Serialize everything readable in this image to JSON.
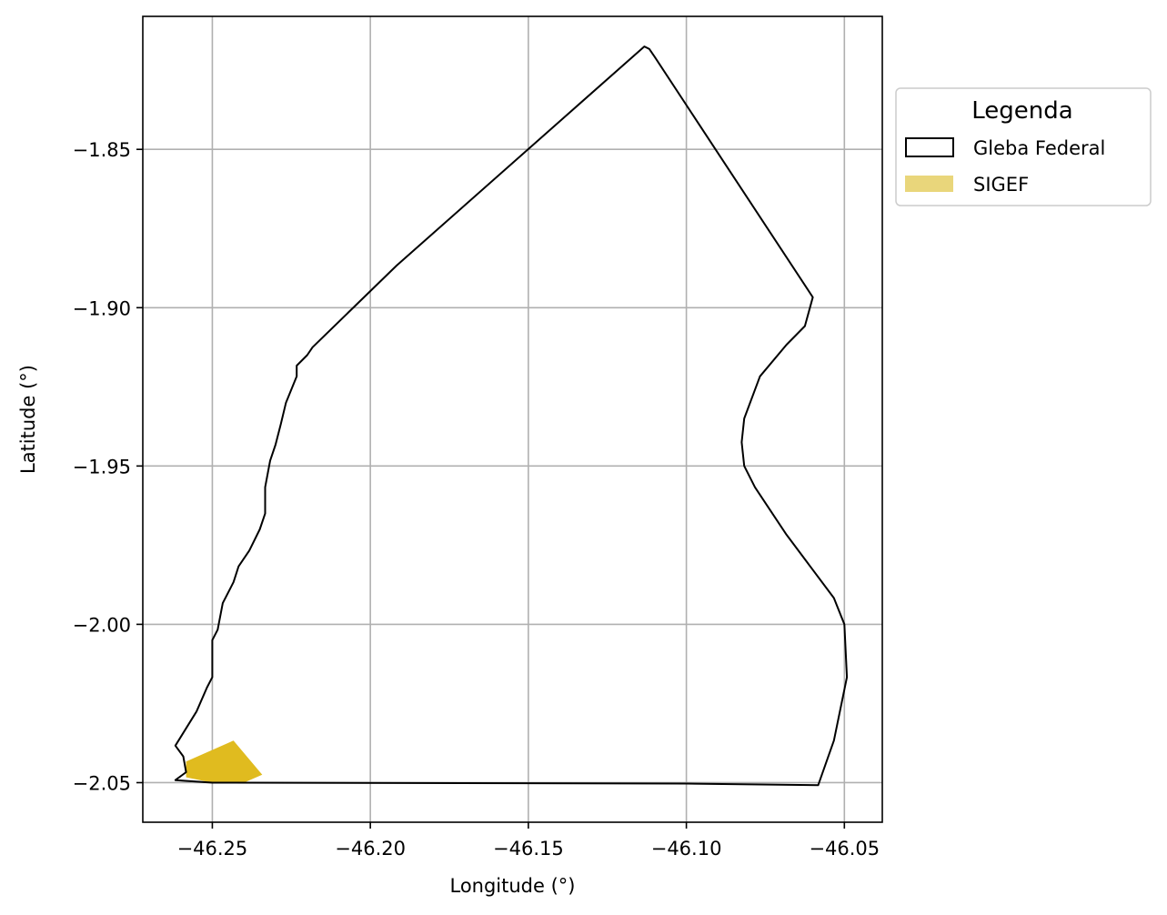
{
  "chart_data": {
    "type": "map",
    "xlabel": "Longitude (°)",
    "ylabel": "Latitude (°)",
    "xlim": [
      -46.272,
      -46.038
    ],
    "ylim": [
      -2.0625,
      -1.808
    ],
    "grid": true,
    "x_ticks": [
      -46.25,
      -46.2,
      -46.15,
      -46.1,
      -46.05
    ],
    "x_tick_labels": [
      "−46.25",
      "−46.20",
      "−46.15",
      "−46.10",
      "−46.05"
    ],
    "y_ticks": [
      -1.85,
      -1.9,
      -1.95,
      -2.0,
      -2.05
    ],
    "y_tick_labels": [
      "−1.85",
      "−1.90",
      "−1.95",
      "−2.00",
      "−2.05"
    ],
    "legend": {
      "title": "Legenda",
      "placement": "outside-right-top",
      "items": [
        {
          "label": "Gleba Federal",
          "style": "outline",
          "color": "#000000"
        },
        {
          "label": "SIGEF",
          "style": "fill",
          "color": "#e9d67b"
        }
      ]
    },
    "layers": [
      {
        "name": "Gleba Federal",
        "color": "#000000",
        "fill": "none",
        "coordinates": [
          [
            -46.1133,
            -1.8175
          ],
          [
            -46.1117,
            -1.8183
          ],
          [
            -46.11,
            -1.8208
          ],
          [
            -46.06,
            -1.8967
          ],
          [
            -46.0625,
            -1.9058
          ],
          [
            -46.0683,
            -1.9117
          ],
          [
            -46.0767,
            -1.9217
          ],
          [
            -46.0817,
            -1.935
          ],
          [
            -46.0825,
            -1.9425
          ],
          [
            -46.0817,
            -1.95
          ],
          [
            -46.0783,
            -1.9567
          ],
          [
            -46.0683,
            -1.9717
          ],
          [
            -46.0533,
            -1.9917
          ],
          [
            -46.05,
            -2.0
          ],
          [
            -46.0492,
            -2.0167
          ],
          [
            -46.0533,
            -2.0367
          ],
          [
            -46.0583,
            -2.0508
          ],
          [
            -46.1,
            -2.0503
          ],
          [
            -46.25,
            -2.05
          ],
          [
            -46.2617,
            -2.0492
          ],
          [
            -46.2583,
            -2.0467
          ],
          [
            -46.2592,
            -2.0417
          ],
          [
            -46.2617,
            -2.0383
          ],
          [
            -46.255,
            -2.0275
          ],
          [
            -46.2517,
            -2.02
          ],
          [
            -46.25,
            -2.0167
          ],
          [
            -46.25,
            -2.005
          ],
          [
            -46.2483,
            -2.0017
          ],
          [
            -46.2467,
            -1.9933
          ],
          [
            -46.2433,
            -1.9867
          ],
          [
            -46.2417,
            -1.9817
          ],
          [
            -46.2383,
            -1.9767
          ],
          [
            -46.235,
            -1.97
          ],
          [
            -46.2333,
            -1.965
          ],
          [
            -46.2333,
            -1.9567
          ],
          [
            -46.2317,
            -1.9483
          ],
          [
            -46.23,
            -1.9433
          ],
          [
            -46.2283,
            -1.9367
          ],
          [
            -46.2267,
            -1.93
          ],
          [
            -46.2233,
            -1.9217
          ],
          [
            -46.2233,
            -1.9183
          ],
          [
            -46.22,
            -1.915
          ],
          [
            -46.2183,
            -1.9125
          ],
          [
            -46.1917,
            -1.8867
          ],
          [
            -46.1133,
            -1.8175
          ]
        ]
      },
      {
        "name": "SIGEF",
        "color": "#e0bb1f",
        "fill": "#e0bb1f",
        "coordinates": [
          [
            -46.2583,
            -2.0433
          ],
          [
            -46.2433,
            -2.0367
          ],
          [
            -46.2342,
            -2.0475
          ],
          [
            -46.24,
            -2.05
          ],
          [
            -46.25,
            -2.05
          ],
          [
            -46.2583,
            -2.0483
          ]
        ]
      }
    ]
  }
}
